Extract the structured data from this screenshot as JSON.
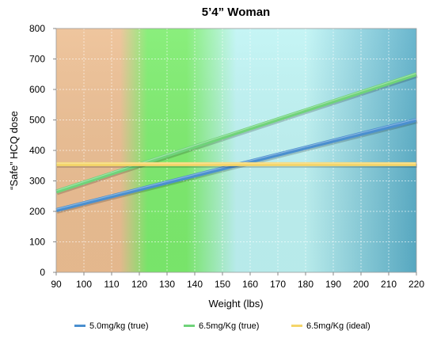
{
  "chart_data": {
    "type": "line",
    "title": "5’4” Woman",
    "xlabel": "Weight (lbs)",
    "ylabel": "“Safe” HCQ dose",
    "xlim": [
      90,
      220
    ],
    "ylim": [
      0,
      800
    ],
    "x_ticks": [
      90,
      100,
      110,
      120,
      130,
      140,
      150,
      160,
      170,
      180,
      190,
      200,
      210,
      220
    ],
    "y_ticks": [
      0,
      100,
      200,
      300,
      400,
      500,
      600,
      700,
      800
    ],
    "x_tick_labels": [
      "90",
      "100",
      "110",
      "120",
      "130",
      "140",
      "150",
      "160",
      "170",
      "180",
      "190",
      "200",
      "210",
      "220"
    ],
    "y_tick_labels": [
      "0",
      "100",
      "200",
      "300",
      "400",
      "500",
      "600",
      "700",
      "800"
    ],
    "grid": true,
    "legend_position": "bottom",
    "background_bands": [
      {
        "from": 90,
        "to": 113,
        "color": "#edbf93"
      },
      {
        "from": 123,
        "to": 137,
        "color": "#7ded6e"
      },
      {
        "from": 155,
        "to": 180,
        "color": "#bff4f4"
      },
      {
        "from": 220,
        "to": 220,
        "color": "#5aaec8"
      }
    ],
    "series": [
      {
        "name": "5.0mg/kg (true)",
        "color": "#4a8fcf",
        "x": [
          90,
          220
        ],
        "y": [
          204,
          500
        ]
      },
      {
        "name": "6.5mg/Kg (true)",
        "color": "#6fd37a",
        "x": [
          90,
          220
        ],
        "y": [
          265,
          650
        ]
      },
      {
        "name": "6.5mg/Kg (ideal)",
        "color": "#f5d66a",
        "x": [
          90,
          220
        ],
        "y": [
          355,
          355
        ]
      }
    ]
  }
}
